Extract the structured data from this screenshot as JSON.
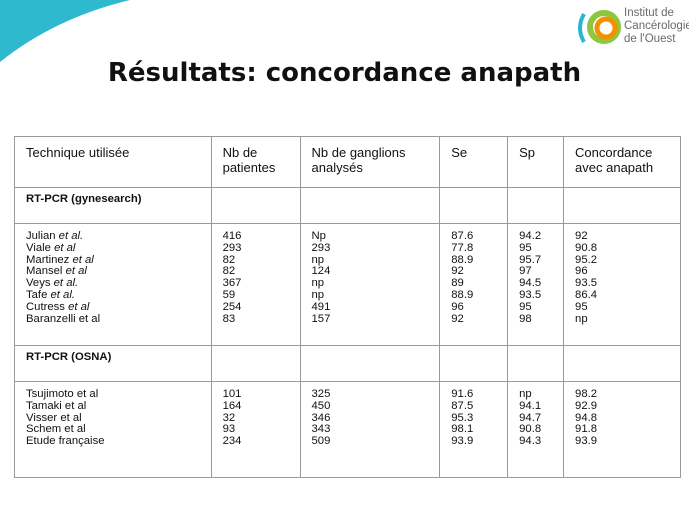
{
  "logo": {
    "lines": [
      "Institut de",
      "Cancérologie",
      "de l'Ouest"
    ],
    "colors": {
      "orange": "#f39200",
      "green": "#8dc63f",
      "teal": "#29b6d1"
    }
  },
  "decoration": {
    "corner_color": "#2fb9cf"
  },
  "title": "Résultats: concordance anapath",
  "table": {
    "headers": [
      "Technique utilisée",
      "Nb de patientes",
      "Nb de ganglions analysés",
      "Se",
      "Sp",
      "Concordance avec anapath"
    ],
    "sections": [
      {
        "label": "RT-PCR (gynesearch)",
        "authors": [
          "Julian et al.",
          "Viale et al",
          "Martinez et al",
          "Mansel et al",
          "Veys et al.",
          "Tafe et al.",
          "Cutress et al",
          "Baranzelli et al"
        ],
        "patients": [
          "416",
          "293",
          "82",
          "82",
          "367",
          "59",
          "254",
          "83"
        ],
        "nodes": [
          "Np",
          "293",
          "np",
          "124",
          "np",
          "np",
          "491",
          "157"
        ],
        "se": [
          "87.6",
          "77.8",
          "88.9",
          "92",
          "89",
          "88.9",
          "96",
          "92"
        ],
        "sp": [
          "94.2",
          "95",
          "95.7",
          "97",
          "94.5",
          "93.5",
          "95",
          "98"
        ],
        "concordance": [
          "92",
          "90.8",
          "95.2",
          "96",
          "93.5",
          "86.4",
          "95",
          "np"
        ]
      },
      {
        "label": "RT-PCR (OSNA)",
        "authors": [
          "Tsujimoto et al",
          "Tamaki et al",
          "Visser et al",
          "Schem et al",
          "Etude française"
        ],
        "patients": [
          "101",
          "164",
          "32",
          "93",
          "234"
        ],
        "nodes": [
          "325",
          "450",
          "346",
          "343",
          "509"
        ],
        "se": [
          "91.6",
          "87.5",
          "95.3",
          "98.1",
          "93.9"
        ],
        "sp": [
          "np",
          "94.1",
          "94.7",
          "90.8",
          "94.3"
        ],
        "concordance": [
          "98.2",
          "92.9",
          "94.8",
          "91.8",
          "93.9"
        ]
      }
    ]
  }
}
